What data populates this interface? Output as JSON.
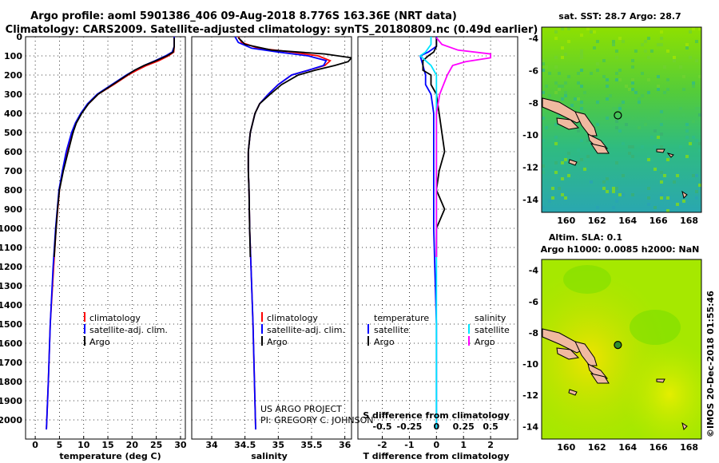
{
  "header": {
    "title_line1": "Argo profile: aoml 5901386_406 09-Aug-2018 8.776S 163.36E (NRT data)",
    "title_line2": "Climatology: CARS2009. Satellite-adjusted climatology: synTS_20180809.nc (0.49d earlier)"
  },
  "colors": {
    "climatology": "#ff0000",
    "satellite": "#0000ff",
    "argo": "#000000",
    "sat_salinity": "#00e5ff",
    "argo_salinity_diff": "#ff00ff"
  },
  "credits": {
    "line1": "US ARGO PROJECT",
    "line2": "PI: GREGORY C. JOHNSON"
  },
  "stamp": "©IMOS 20-Dec-2018 01:55:46",
  "chart_data": [
    {
      "type": "line",
      "name": "temperature-profile",
      "xlabel": "temperature (deg C)",
      "ylabel": "",
      "xlim": [
        -2,
        31
      ],
      "ylim": [
        2100,
        0
      ],
      "xticks": [
        "0",
        "5",
        "10",
        "15",
        "20",
        "25",
        "30"
      ],
      "yticks": [
        "0",
        "100",
        "200",
        "300",
        "400",
        "500",
        "600",
        "700",
        "800",
        "900",
        "1000",
        "1100",
        "1200",
        "1300",
        "1400",
        "1500",
        "1600",
        "1700",
        "1800",
        "1900",
        "2000"
      ],
      "legend": {
        "position": "bottom-right",
        "entries": [
          "climatology",
          "satellite-adj. clim.",
          "Argo"
        ]
      },
      "grid": true,
      "series": [
        {
          "name": "climatology",
          "depth": [
            0,
            50,
            80,
            100,
            125,
            150,
            175,
            200,
            250,
            300,
            350,
            400,
            450,
            500,
            600,
            700,
            800,
            1000,
            1200,
            1500,
            1800,
            2050
          ],
          "values": [
            28.7,
            28.7,
            28.6,
            27.5,
            25.5,
            23,
            21,
            19.2,
            16.2,
            13,
            11,
            9.5,
            8.4,
            7.6,
            6.5,
            5.7,
            5,
            4.3,
            3.8,
            3.1,
            2.7,
            2.3
          ]
        },
        {
          "name": "satellite-adj. clim.",
          "depth": [
            0,
            50,
            80,
            100,
            125,
            150,
            175,
            200,
            250,
            300,
            350,
            400,
            450,
            500,
            600,
            700,
            800,
            1000,
            1200,
            1500,
            1800,
            2050
          ],
          "values": [
            28.7,
            28.7,
            28.3,
            26.9,
            24.8,
            22.5,
            20.5,
            18.8,
            15.8,
            12.8,
            10.8,
            9.4,
            8.3,
            7.5,
            6.4,
            5.6,
            4.9,
            4.2,
            3.7,
            3.1,
            2.7,
            2.3
          ]
        },
        {
          "name": "Argo",
          "depth": [
            5,
            50,
            80,
            100,
            125,
            150,
            175,
            200,
            250,
            300,
            350,
            400,
            450,
            500,
            600,
            700,
            800,
            900,
            1000,
            1150
          ],
          "values": [
            28.7,
            28.7,
            28.5,
            27.2,
            25,
            22.5,
            20.5,
            19,
            16,
            13,
            11,
            9.6,
            8.5,
            7.8,
            6.8,
            5.8,
            5,
            4.6,
            4.3,
            3.9
          ]
        }
      ]
    },
    {
      "type": "line",
      "name": "salinity-profile",
      "xlabel": "salinity",
      "xlim": [
        33.7,
        36.1
      ],
      "ylim": [
        2100,
        0
      ],
      "xticks": [
        "34",
        "34.5",
        "35",
        "35.5",
        "36"
      ],
      "legend": {
        "position": "bottom-right",
        "entries": [
          "climatology",
          "satellite-adj. clim.",
          "Argo"
        ]
      },
      "grid": true,
      "series": [
        {
          "name": "climatology",
          "depth": [
            0,
            30,
            60,
            80,
            100,
            125,
            150,
            175,
            200,
            250,
            300,
            350,
            400,
            500,
            600,
            700,
            800,
            1000,
            1500,
            2050
          ],
          "values": [
            34.4,
            34.45,
            34.7,
            35.2,
            35.6,
            35.78,
            35.7,
            35.45,
            35.2,
            35,
            34.85,
            34.72,
            34.65,
            34.58,
            34.55,
            34.55,
            34.56,
            34.57,
            34.62,
            34.66
          ]
        },
        {
          "name": "satellite-adj. clim.",
          "depth": [
            0,
            30,
            60,
            80,
            100,
            125,
            150,
            175,
            200,
            250,
            300,
            350,
            400,
            500,
            600,
            700,
            800,
            1000,
            1500,
            2050
          ],
          "values": [
            34.35,
            34.4,
            34.6,
            35.0,
            35.45,
            35.72,
            35.68,
            35.45,
            35.2,
            35,
            34.85,
            34.72,
            34.65,
            34.58,
            34.55,
            34.55,
            34.56,
            34.57,
            34.62,
            34.66
          ]
        },
        {
          "name": "Argo",
          "depth": [
            5,
            40,
            70,
            90,
            110,
            130,
            150,
            175,
            200,
            250,
            300,
            350,
            400,
            500,
            600,
            700,
            800,
            1000,
            1150
          ],
          "values": [
            34.4,
            34.5,
            34.9,
            35.7,
            36.1,
            36.05,
            35.85,
            35.55,
            35.3,
            35.05,
            34.88,
            34.72,
            34.65,
            34.58,
            34.55,
            34.55,
            34.56,
            34.57,
            34.58
          ]
        }
      ]
    },
    {
      "type": "line",
      "name": "difference-profile",
      "xlabel": "T difference from climatology",
      "xlabel2": "S difference from climatology",
      "xlim": [
        -2.9,
        3.0
      ],
      "ylim": [
        2100,
        0
      ],
      "xticks": [
        "-2",
        "-1",
        "0",
        "1",
        "2"
      ],
      "xticks_s": [
        "-0.5",
        "-0.25",
        "0",
        "0.25",
        "0.5"
      ],
      "legend": {
        "position": "bottom",
        "temperature_title": "temperature",
        "salinity_title": "salinity",
        "entries": [
          "satellite",
          "Argo"
        ]
      },
      "grid": true,
      "series": [
        {
          "name": "T satellite",
          "depth": [
            0,
            50,
            80,
            100,
            150,
            200,
            250,
            300,
            400,
            500,
            700,
            1000,
            1500,
            2050
          ],
          "values": [
            0,
            0,
            -0.3,
            -0.6,
            -0.5,
            -0.4,
            -0.4,
            -0.2,
            -0.1,
            -0.1,
            -0.1,
            -0.1,
            0,
            0
          ]
        },
        {
          "name": "T Argo",
          "depth": [
            5,
            50,
            80,
            100,
            125,
            150,
            175,
            200,
            250,
            300,
            400,
            500,
            600,
            700,
            800,
            900,
            1000,
            1150
          ],
          "values": [
            0,
            0,
            -0.1,
            -0.3,
            -0.5,
            -0.5,
            -0.5,
            -0.2,
            -0.2,
            0,
            0.1,
            0.2,
            0.3,
            0.1,
            0,
            0.3,
            0,
            0
          ]
        },
        {
          "name": "S satellite",
          "depth": [
            0,
            40,
            80,
            100,
            150,
            200,
            300,
            400,
            600,
            1000,
            2050
          ],
          "values": [
            -0.05,
            -0.05,
            -0.1,
            -0.15,
            -0.05,
            0,
            0,
            0,
            0,
            0,
            0
          ]
        },
        {
          "name": "S Argo",
          "depth": [
            5,
            40,
            70,
            90,
            110,
            130,
            150,
            200,
            300,
            400,
            600,
            1000,
            1150
          ],
          "values": [
            0,
            0.05,
            0.2,
            0.5,
            0.5,
            0.27,
            0.15,
            0.1,
            0.03,
            0,
            0,
            0,
            0
          ]
        }
      ]
    }
  ],
  "maps": [
    {
      "name": "sst-map",
      "title": "sat. SST: 28.7 Argo: 28.7",
      "xticks": [
        "160",
        "162",
        "164",
        "166",
        "168"
      ],
      "yticks": [
        "-4",
        "-6",
        "-8",
        "-10",
        "-12",
        "-14"
      ],
      "float_lon": 163.36,
      "float_lat": -8.776
    },
    {
      "name": "sla-map",
      "title_line1": "Altim. SLA: 0.1",
      "title_line2": "Argo h1000: 0.0085 h2000: NaN",
      "xticks": [
        "160",
        "162",
        "164",
        "166",
        "168"
      ],
      "yticks": [
        "-4",
        "-6",
        "-8",
        "-10",
        "-12",
        "-14"
      ],
      "float_lon": 163.36,
      "float_lat": -8.776
    }
  ]
}
